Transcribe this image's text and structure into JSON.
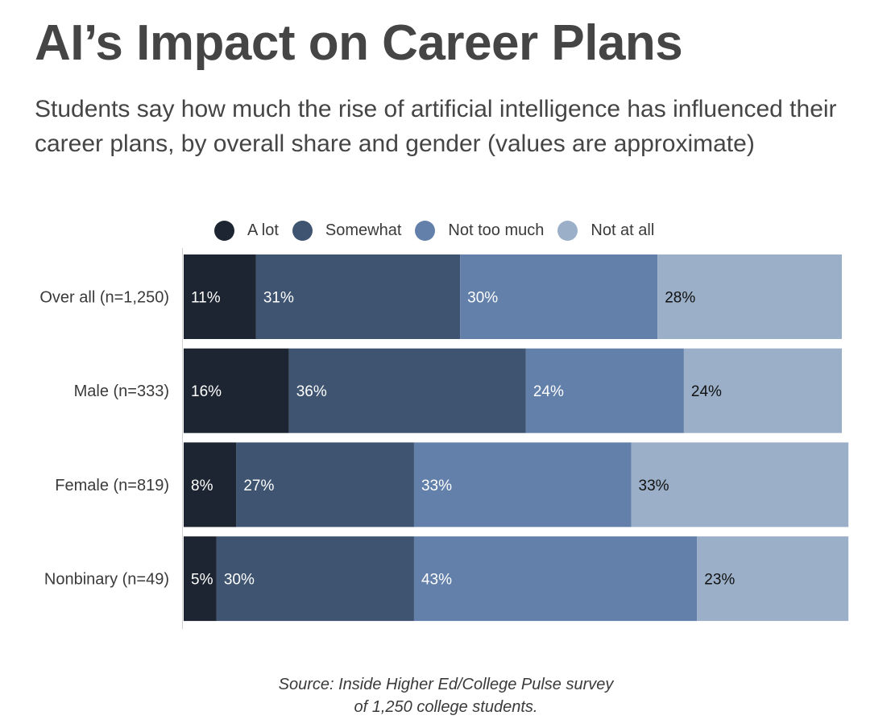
{
  "title": "AI’s Impact on Career Plans",
  "subtitle": "Students say how much the rise of artificial intelligence has influenced their career plans, by overall share and gender (values are approximate)",
  "source_line1": "Source: Inside Higher Ed/College Pulse survey",
  "source_line2": "of 1,250 college students.",
  "chart_data": {
    "type": "bar",
    "orientation": "horizontal",
    "stacked": true,
    "unit": "%",
    "categories": [
      "Over all (n=1,250)",
      "Male (n=333)",
      "Female (n=819)",
      "Nonbinary (n=49)"
    ],
    "series": [
      {
        "name": "A lot",
        "color": "#1c2531",
        "label_color": "#ffffff",
        "values": [
          11,
          16,
          8,
          5
        ]
      },
      {
        "name": "Somewhat",
        "color": "#3e5470",
        "label_color": "#ffffff",
        "values": [
          31,
          36,
          27,
          30
        ]
      },
      {
        "name": "Not too much",
        "color": "#6380ab",
        "label_color": "#ffffff",
        "values": [
          30,
          24,
          33,
          43
        ]
      },
      {
        "name": "Not at all",
        "color": "#9bafc8",
        "label_color": "#111111",
        "values": [
          28,
          24,
          33,
          23
        ]
      }
    ],
    "legend_position": "top",
    "grid": false
  }
}
